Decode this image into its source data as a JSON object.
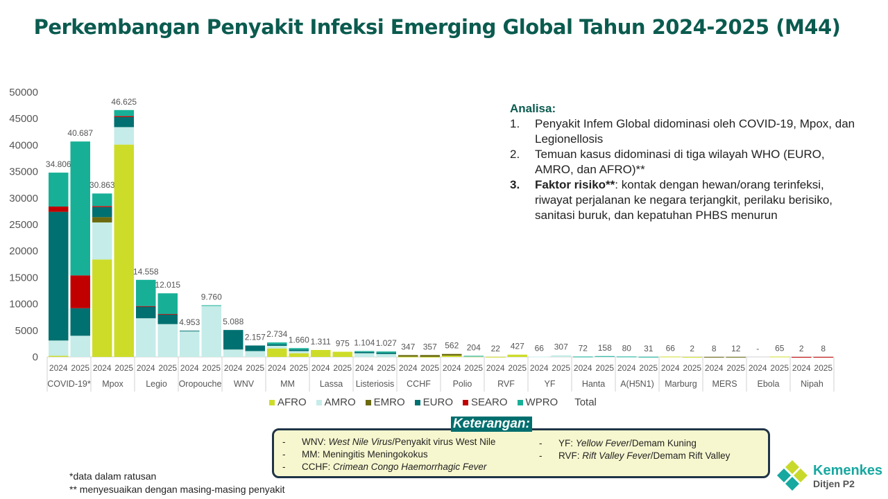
{
  "title": "Perkembangan Penyakit Infeksi Emerging Global Tahun 2024-2025 (M44)",
  "chart_data": {
    "type": "bar",
    "stacked": true,
    "ylim": [
      0,
      50000
    ],
    "yticks": [
      0,
      5000,
      10000,
      15000,
      20000,
      25000,
      30000,
      35000,
      40000,
      45000,
      50000
    ],
    "series_names": [
      "AFRO",
      "AMRO",
      "EMRO",
      "EURO",
      "SEARO",
      "WPRO"
    ],
    "series_colors": [
      "#cddc29",
      "#c5ece8",
      "#6b6a10",
      "#007070",
      "#c00000",
      "#17b097"
    ],
    "total_label": "Total",
    "legend_position": "bottom",
    "groups": [
      {
        "name": "COVID-19*",
        "bars": [
          {
            "year": "2024",
            "total": "34.806",
            "values": [
              200,
              2900,
              0,
              24300,
              1000,
              6406
            ]
          },
          {
            "year": "2025",
            "total": "40.687",
            "values": [
              0,
              4000,
              0,
              5200,
              6200,
              25287
            ]
          }
        ]
      },
      {
        "name": "Mpox",
        "bars": [
          {
            "year": "2024",
            "total": "30.863",
            "values": [
              18400,
              7000,
              1000,
              1900,
              200,
              2363
            ]
          },
          {
            "year": "2025",
            "total": "46.625",
            "values": [
              40100,
              3300,
              0,
              1900,
              200,
              1125
            ]
          }
        ]
      },
      {
        "name": "Legio",
        "bars": [
          {
            "year": "2024",
            "total": "14.558",
            "values": [
              0,
              7300,
              0,
              2200,
              100,
              4958
            ]
          },
          {
            "year": "2025",
            "total": "12.015",
            "values": [
              0,
              6200,
              0,
              1800,
              100,
              3915
            ]
          }
        ]
      },
      {
        "name": "Oropouche",
        "bars": [
          {
            "year": "2024",
            "total": "4.953",
            "values": [
              0,
              4850,
              0,
              103,
              0,
              0
            ]
          },
          {
            "year": "2025",
            "total": "9.760",
            "values": [
              0,
              9660,
              0,
              0,
              0,
              100
            ]
          }
        ]
      },
      {
        "name": "WNV",
        "bars": [
          {
            "year": "2024",
            "total": "5.088",
            "values": [
              0,
              1400,
              0,
              3688,
              0,
              0
            ]
          },
          {
            "year": "2025",
            "total": "2.157",
            "values": [
              0,
              1100,
              0,
              1057,
              0,
              0
            ]
          }
        ]
      },
      {
        "name": "MM",
        "bars": [
          {
            "year": "2024",
            "total": "2.734",
            "values": [
              1600,
              500,
              0,
              300,
              0,
              334
            ]
          },
          {
            "year": "2025",
            "total": "1.660",
            "values": [
              700,
              400,
              0,
              300,
              0,
              260
            ]
          }
        ]
      },
      {
        "name": "Lassa",
        "bars": [
          {
            "year": "2024",
            "total": "1.311",
            "values": [
              1311,
              0,
              0,
              0,
              0,
              0
            ]
          },
          {
            "year": "2025",
            "total": "975",
            "values": [
              975,
              0,
              0,
              0,
              0,
              0
            ]
          }
        ]
      },
      {
        "name": "Listeriosis",
        "bars": [
          {
            "year": "2024",
            "total": "1.104",
            "values": [
              0,
              700,
              0,
              250,
              0,
              154
            ]
          },
          {
            "year": "2025",
            "total": "1.027",
            "values": [
              0,
              550,
              0,
              250,
              0,
              227
            ]
          }
        ]
      },
      {
        "name": "CCHF",
        "bars": [
          {
            "year": "2024",
            "total": "347",
            "values": [
              50,
              0,
              297,
              0,
              0,
              0
            ]
          },
          {
            "year": "2025",
            "total": "357",
            "values": [
              20,
              0,
              337,
              0,
              0,
              0
            ]
          }
        ]
      },
      {
        "name": "Polio",
        "bars": [
          {
            "year": "2024",
            "total": "562",
            "values": [
              250,
              0,
              312,
              0,
              0,
              0
            ]
          },
          {
            "year": "2025",
            "total": "204",
            "values": [
              100,
              50,
              0,
              0,
              0,
              54
            ]
          }
        ]
      },
      {
        "name": "RVF",
        "bars": [
          {
            "year": "2024",
            "total": "22",
            "values": [
              22,
              0,
              0,
              0,
              0,
              0
            ]
          },
          {
            "year": "2025",
            "total": "427",
            "values": [
              427,
              0,
              0,
              0,
              0,
              0
            ]
          }
        ]
      },
      {
        "name": "YF",
        "bars": [
          {
            "year": "2024",
            "total": "66",
            "values": [
              0,
              66,
              0,
              0,
              0,
              0
            ]
          },
          {
            "year": "2025",
            "total": "307",
            "values": [
              0,
              307,
              0,
              0,
              0,
              0
            ]
          }
        ]
      },
      {
        "name": "Hanta",
        "bars": [
          {
            "year": "2024",
            "total": "72",
            "values": [
              0,
              40,
              0,
              0,
              0,
              32
            ]
          },
          {
            "year": "2025",
            "total": "158",
            "values": [
              0,
              120,
              0,
              0,
              0,
              38
            ]
          }
        ]
      },
      {
        "name": "A(H5N1)",
        "bars": [
          {
            "year": "2024",
            "total": "80",
            "values": [
              0,
              50,
              0,
              0,
              0,
              30
            ]
          },
          {
            "year": "2025",
            "total": "31",
            "values": [
              0,
              10,
              0,
              0,
              0,
              21
            ]
          }
        ]
      },
      {
        "name": "Marburg",
        "bars": [
          {
            "year": "2024",
            "total": "66",
            "values": [
              66,
              0,
              0,
              0,
              0,
              0
            ]
          },
          {
            "year": "2025",
            "total": "2",
            "values": [
              2,
              0,
              0,
              0,
              0,
              0
            ]
          }
        ]
      },
      {
        "name": "MERS",
        "bars": [
          {
            "year": "2024",
            "total": "8",
            "values": [
              0,
              0,
              8,
              0,
              0,
              0
            ]
          },
          {
            "year": "2025",
            "total": "12",
            "values": [
              0,
              0,
              12,
              0,
              0,
              0
            ]
          }
        ]
      },
      {
        "name": "Ebola",
        "bars": [
          {
            "year": "2024",
            "total": "-",
            "values": [
              0,
              0,
              0,
              0,
              0,
              0
            ]
          },
          {
            "year": "2025",
            "total": "65",
            "values": [
              65,
              0,
              0,
              0,
              0,
              0
            ]
          }
        ]
      },
      {
        "name": "Nipah",
        "bars": [
          {
            "year": "2024",
            "total": "2",
            "values": [
              0,
              0,
              0,
              0,
              2,
              0
            ]
          },
          {
            "year": "2025",
            "total": "8",
            "values": [
              0,
              0,
              0,
              0,
              8,
              0
            ]
          }
        ]
      }
    ]
  },
  "analysis": {
    "heading": "Analisa:",
    "items": [
      {
        "num": "1.",
        "bold": "",
        "text": "Penyakit Infem Global didominasi oleh COVID-19, Mpox, dan Legionellosis"
      },
      {
        "num": "2.",
        "bold": "",
        "text": "Temuan kasus didominasi di tiga wilayah WHO (EURO, AMRO, dan AFRO)**"
      },
      {
        "num": "3.",
        "bold": "Faktor risiko**",
        "text": ": kontak dengan hewan/orang terinfeksi, riwayat perjalanan ke negara terjangkit, perilaku berisiko, sanitasi buruk, dan kepatuhan PHBS menurun"
      }
    ]
  },
  "keterangan": {
    "title": "Keterangan:",
    "left": [
      {
        "dash": "-",
        "abbr": "WNV: ",
        "italic": "West Nile Virus",
        "rest": "/Penyakit virus West Nile"
      },
      {
        "dash": "-",
        "abbr": "MM: ",
        "italic": "",
        "rest": "Meningitis Meningokokus"
      },
      {
        "dash": "-",
        "abbr": "CCHF: ",
        "italic": "Crimean Congo Haemorrhagic Fever",
        "rest": ""
      }
    ],
    "right": [
      {
        "dash": "-",
        "abbr": "YF: ",
        "italic": "Yellow Fever",
        "rest": "/Demam Kuning"
      },
      {
        "dash": "-",
        "abbr": "RVF: ",
        "italic": "Rift Valley Fever",
        "rest": "/Demam Rift Valley"
      }
    ]
  },
  "notes": [
    "*data dalam ratusan",
    "** menyesuaikan dengan masing-masing penyakit"
  ],
  "logo": {
    "name": "Kemenkes",
    "sub": "Ditjen P2"
  }
}
